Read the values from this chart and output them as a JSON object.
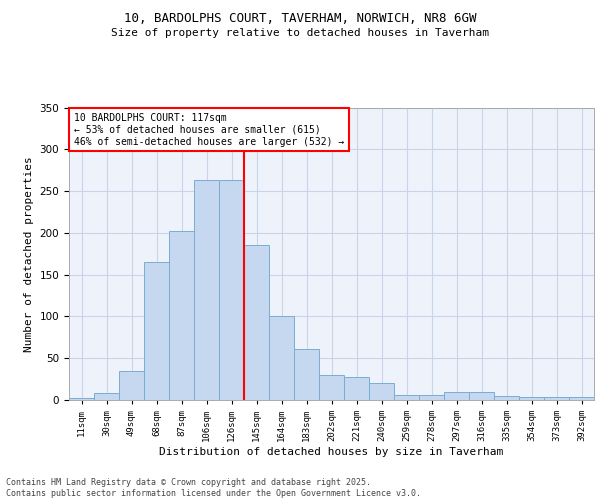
{
  "title": "10, BARDOLPHS COURT, TAVERHAM, NORWICH, NR8 6GW",
  "subtitle": "Size of property relative to detached houses in Taverham",
  "xlabel": "Distribution of detached houses by size in Taverham",
  "ylabel": "Number of detached properties",
  "bin_labels": [
    "11sqm",
    "30sqm",
    "49sqm",
    "68sqm",
    "87sqm",
    "106sqm",
    "126sqm",
    "145sqm",
    "164sqm",
    "183sqm",
    "202sqm",
    "221sqm",
    "240sqm",
    "259sqm",
    "278sqm",
    "297sqm",
    "316sqm",
    "335sqm",
    "354sqm",
    "373sqm",
    "392sqm"
  ],
  "bar_heights": [
    2,
    8,
    35,
    165,
    202,
    263,
    263,
    186,
    100,
    61,
    30,
    28,
    20,
    6,
    6,
    9,
    9,
    5,
    3,
    3,
    4
  ],
  "bar_color": "#c5d8f0",
  "bar_edge_color": "#7aadd4",
  "vline_color": "red",
  "annotation_text": "10 BARDOLPHS COURT: 117sqm\n← 53% of detached houses are smaller (615)\n46% of semi-detached houses are larger (532) →",
  "annotation_box_color": "white",
  "annotation_box_edge_color": "red",
  "ylim": [
    0,
    350
  ],
  "yticks": [
    0,
    50,
    100,
    150,
    200,
    250,
    300,
    350
  ],
  "bg_color": "#eef2fb",
  "footer": "Contains HM Land Registry data © Crown copyright and database right 2025.\nContains public sector information licensed under the Open Government Licence v3.0.",
  "grid_color": "#c8d4e8",
  "title_fontsize": 9,
  "subtitle_fontsize": 8,
  "xlabel_fontsize": 8,
  "ylabel_fontsize": 8,
  "footer_fontsize": 6
}
